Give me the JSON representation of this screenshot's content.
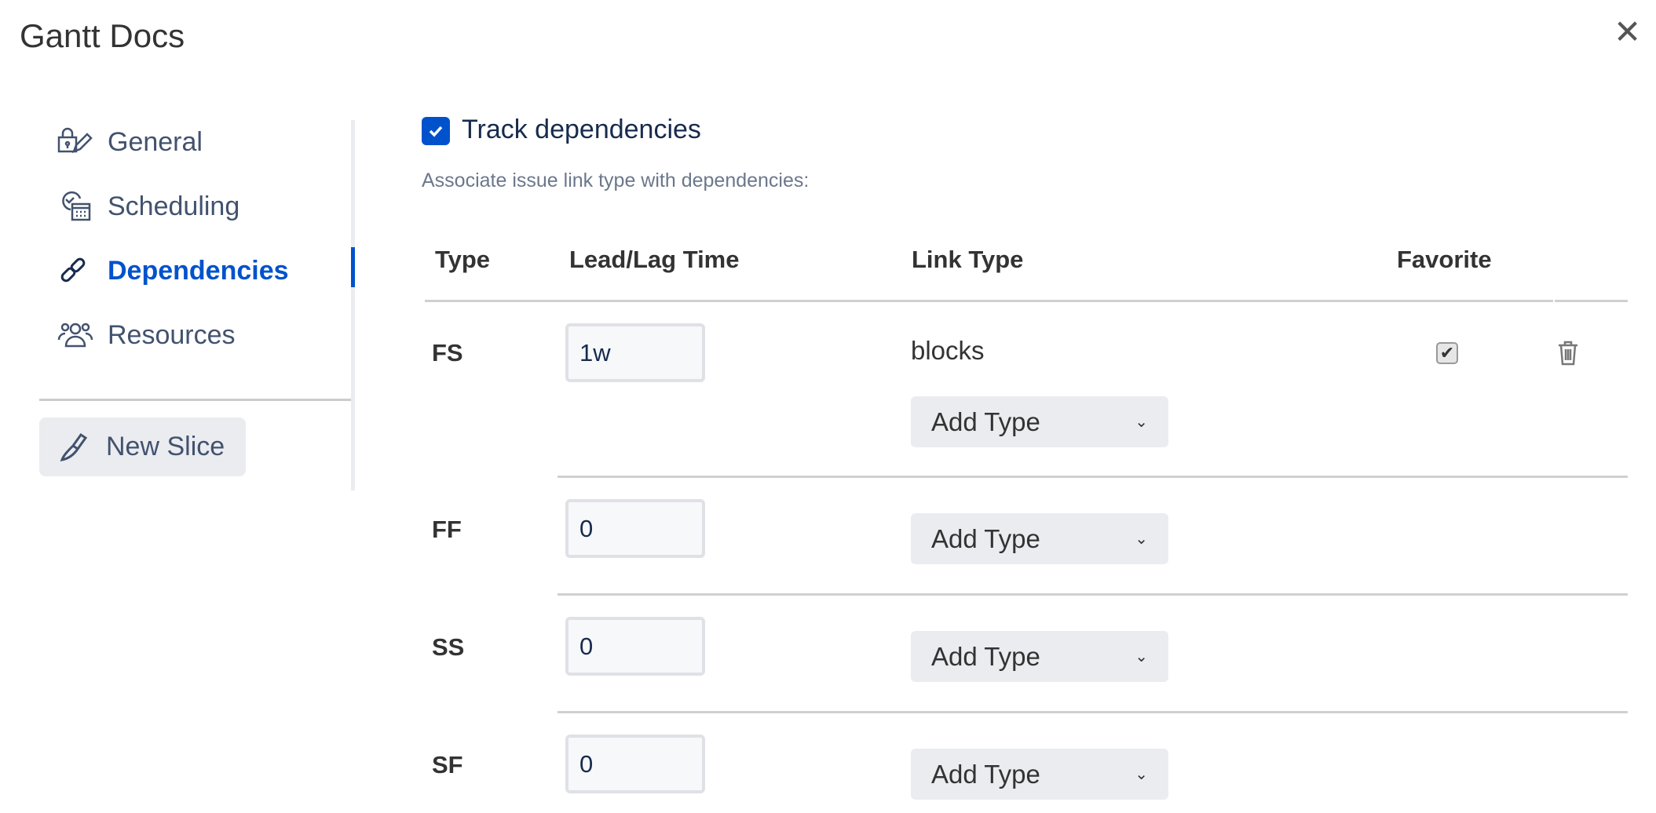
{
  "dialog": {
    "title": "Gantt Docs",
    "close_icon": "close-icon"
  },
  "sidebar": {
    "items": [
      {
        "label": "General",
        "icon": "lock-edit-icon",
        "active": false
      },
      {
        "label": "Scheduling",
        "icon": "clock-calendar-icon",
        "active": false
      },
      {
        "label": "Dependencies",
        "icon": "link-icon",
        "active": true
      },
      {
        "label": "Resources",
        "icon": "people-icon",
        "active": false
      }
    ],
    "new_slice_label": "New Slice",
    "new_slice_icon": "knife-icon"
  },
  "main": {
    "track_label": "Track dependencies",
    "track_checked": true,
    "assoc_text": "Associate issue link type with dependencies:",
    "headers": {
      "type": "Type",
      "lead_lag": "Lead/Lag Time",
      "link_type": "Link Type",
      "favorite": "Favorite"
    },
    "rows": [
      {
        "type": "FS",
        "lead_lag": "1w",
        "link_types": [
          "blocks"
        ],
        "favorite": true,
        "add_type": "Add Type"
      },
      {
        "type": "FF",
        "lead_lag": "0",
        "add_type": "Add Type"
      },
      {
        "type": "SS",
        "lead_lag": "0",
        "add_type": "Add Type"
      },
      {
        "type": "SF",
        "lead_lag": "0",
        "add_type": "Add Type"
      }
    ]
  },
  "colors": {
    "accent": "#0052cc",
    "text": "#42526e"
  }
}
